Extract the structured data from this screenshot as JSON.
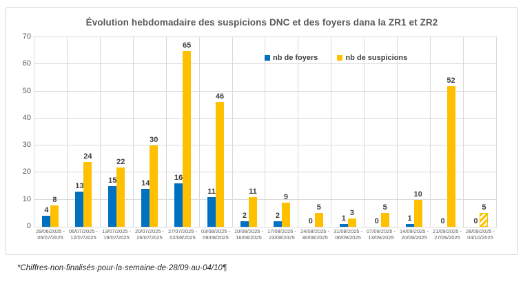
{
  "chart_data": {
    "type": "bar",
    "title": "Évolution hebdomadaire des suspicions DNC et des foyers dana la ZR1 et ZR2",
    "categories": [
      "29/06/2025 - 05/07/2025",
      "06/07/2025 - 12/07/2025",
      "13/07/2025 - 19/07/2025",
      "20/07/2025 - 26/07/2025",
      "27/07/2025 - 02/08/2025",
      "03/08/2025 - 09/08/2025",
      "10/08/2025 - 16/08/2025",
      "17/08/2025 - 23/08/2025",
      "24/08/2025 - 30/08/2025",
      "31/08/2025 - 06/09/2025",
      "07/09/2025 - 13/09/2025",
      "14/09/2025 - 20/09/2025",
      "21/09/2025 - 27/09/2025",
      "28/09/2025 - 04/10/2025"
    ],
    "series": [
      {
        "name": "nb de foyers",
        "color": "#0070C0",
        "values": [
          4,
          13,
          15,
          14,
          16,
          11,
          2,
          2,
          0,
          1,
          0,
          1,
          0,
          0
        ]
      },
      {
        "name": "nb de suspicions",
        "color": "#FFC000",
        "values": [
          8,
          24,
          22,
          30,
          65,
          46,
          11,
          9,
          5,
          3,
          5,
          10,
          52,
          5
        ]
      }
    ],
    "ylim": [
      0,
      70
    ],
    "yticks": [
      0,
      10,
      20,
      30,
      40,
      50,
      60,
      70
    ],
    "grid": true,
    "legend_position": "inside-top-right",
    "hatched_bar": {
      "series": "nb de suspicions",
      "category_index": 13,
      "value": 5
    }
  },
  "footnote": "*Chiffres·non·finalisés·pour·la·semaine·de·28/09·au·04/10¶",
  "colors": {
    "foyers": "#0070C0",
    "suspicions": "#FFC000",
    "grid": "#D9D9D9",
    "axis_text": "#595959",
    "data_label_text": "#404040"
  }
}
